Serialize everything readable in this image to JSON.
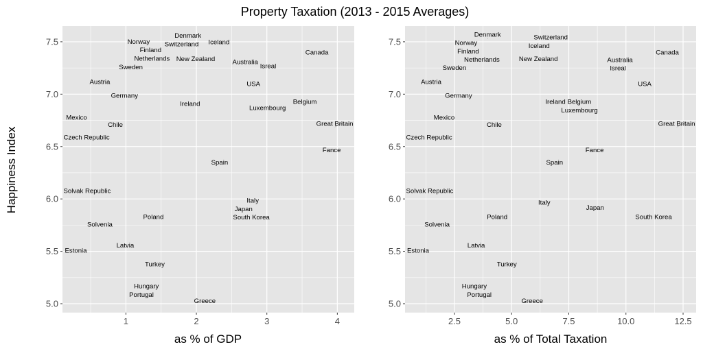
{
  "chart_data": [
    {
      "type": "scatter",
      "title": "Property Taxation (2013 - 2015 Averages)",
      "xlabel": "as % of GDP",
      "ylabel": "Happiness Index",
      "xlim": [
        0.1,
        4.24
      ],
      "ylim": [
        4.915,
        7.65
      ],
      "xticks": [
        1,
        2,
        3,
        4
      ],
      "xtick_labels": [
        "1",
        "2",
        "3",
        "4"
      ],
      "yticks": [
        5.0,
        5.5,
        6.0,
        6.5,
        7.0,
        7.5
      ],
      "ytick_labels": [
        "5.0",
        "5.5",
        "6.0",
        "6.5",
        "7.0",
        "7.5"
      ],
      "grid": true,
      "marker": "text-label",
      "points": [
        {
          "label": "Norway",
          "x": 1.18,
          "y": 7.49
        },
        {
          "label": "Denmark",
          "x": 1.88,
          "y": 7.53
        },
        {
          "label": "Switzerland",
          "x": 1.79,
          "y": 7.51
        },
        {
          "label": "Iceland",
          "x": 2.32,
          "y": 7.5
        },
        {
          "label": "Finland",
          "x": 1.35,
          "y": 7.41
        },
        {
          "label": "Netherlands",
          "x": 1.37,
          "y": 7.34
        },
        {
          "label": "New Zealand",
          "x": 1.99,
          "y": 7.34
        },
        {
          "label": "Sweden",
          "x": 1.07,
          "y": 7.29
        },
        {
          "label": "Australia",
          "x": 2.7,
          "y": 7.31
        },
        {
          "label": "Isreal",
          "x": 3.01,
          "y": 7.27
        },
        {
          "label": "Canada",
          "x": 3.71,
          "y": 7.4
        },
        {
          "label": "Austria",
          "x": 0.63,
          "y": 7.12
        },
        {
          "label": "USA",
          "x": 2.81,
          "y": 7.1
        },
        {
          "label": "Germany",
          "x": 0.98,
          "y": 6.99
        },
        {
          "label": "Ireland",
          "x": 1.91,
          "y": 6.91
        },
        {
          "label": "Luxembourg",
          "x": 3.01,
          "y": 6.87
        },
        {
          "label": "Belgium",
          "x": 3.54,
          "y": 6.93
        },
        {
          "label": "Mexico",
          "x": 0.3,
          "y": 6.78
        },
        {
          "label": "Chile",
          "x": 0.85,
          "y": 6.71
        },
        {
          "label": "Great Britain",
          "x": 4.06,
          "y": 6.72
        },
        {
          "label": "Czech Republic",
          "x": 0.43,
          "y": 6.59
        },
        {
          "label": "Fance",
          "x": 3.92,
          "y": 6.47
        },
        {
          "label": "Spain",
          "x": 2.33,
          "y": 6.35
        },
        {
          "label": "Solvak Republic",
          "x": 0.43,
          "y": 6.08
        },
        {
          "label": "Italy",
          "x": 2.8,
          "y": 5.97
        },
        {
          "label": "Japan",
          "x": 2.67,
          "y": 5.92
        },
        {
          "label": "South Korea",
          "x": 2.78,
          "y": 5.83
        },
        {
          "label": "Poland",
          "x": 1.39,
          "y": 5.83
        },
        {
          "label": "Solvenia",
          "x": 0.63,
          "y": 5.76
        },
        {
          "label": "Latvia",
          "x": 0.99,
          "y": 5.56
        },
        {
          "label": "Estonia",
          "x": 0.29,
          "y": 5.51
        },
        {
          "label": "Turkey",
          "x": 1.41,
          "y": 5.38
        },
        {
          "label": "Hungary",
          "x": 1.29,
          "y": 5.14
        },
        {
          "label": "Portugal",
          "x": 1.22,
          "y": 5.12
        },
        {
          "label": "Greece",
          "x": 2.12,
          "y": 5.03
        }
      ]
    },
    {
      "type": "scatter",
      "xlabel": "as % of Total Taxation",
      "xlim": [
        0.34,
        13.07
      ],
      "ylim": [
        4.915,
        7.65
      ],
      "xticks": [
        2.5,
        5.0,
        7.5,
        10.0,
        12.5
      ],
      "xtick_labels": [
        "2.5",
        "5.0",
        "7.5",
        "10.0",
        "12.5"
      ],
      "yticks": [
        5.0,
        5.5,
        6.0,
        6.5,
        7.0,
        7.5
      ],
      "ytick_labels": [
        "5.0",
        "5.5",
        "6.0",
        "6.5",
        "7.0",
        "7.5"
      ],
      "grid": true,
      "marker": "text-label",
      "points": [
        {
          "label": "Norway",
          "x": 3.01,
          "y": 7.49
        },
        {
          "label": "Denmark",
          "x": 3.95,
          "y": 7.53
        },
        {
          "label": "Switzerland",
          "x": 6.71,
          "y": 7.51
        },
        {
          "label": "Iceland",
          "x": 6.2,
          "y": 7.5
        },
        {
          "label": "Finland",
          "x": 3.1,
          "y": 7.41
        },
        {
          "label": "Netherlands",
          "x": 3.7,
          "y": 7.34
        },
        {
          "label": "New Zealand",
          "x": 6.17,
          "y": 7.34
        },
        {
          "label": "Sweden",
          "x": 2.5,
          "y": 7.29
        },
        {
          "label": "Australia",
          "x": 9.74,
          "y": 7.31
        },
        {
          "label": "Isreal",
          "x": 9.65,
          "y": 7.27
        },
        {
          "label": "Canada",
          "x": 11.81,
          "y": 7.4
        },
        {
          "label": "Austria",
          "x": 1.48,
          "y": 7.12
        },
        {
          "label": "USA",
          "x": 10.82,
          "y": 7.1
        },
        {
          "label": "Germany",
          "x": 2.68,
          "y": 6.99
        },
        {
          "label": "Ireland",
          "x": 7.03,
          "y": 6.91
        },
        {
          "label": "Belgium",
          "x": 7.85,
          "y": 6.93
        },
        {
          "label": "Luxembourg",
          "x": 7.97,
          "y": 6.87
        },
        {
          "label": "Mexico",
          "x": 2.05,
          "y": 6.78
        },
        {
          "label": "Chile",
          "x": 4.24,
          "y": 6.71
        },
        {
          "label": "Great Britain",
          "x": 12.55,
          "y": 6.72
        },
        {
          "label": "Czech Republic",
          "x": 1.29,
          "y": 6.59
        },
        {
          "label": "Fance",
          "x": 8.63,
          "y": 6.47
        },
        {
          "label": "Spain",
          "x": 6.88,
          "y": 6.35
        },
        {
          "label": "Solvak Republic",
          "x": 1.41,
          "y": 6.08
        },
        {
          "label": "Italy",
          "x": 6.43,
          "y": 5.97
        },
        {
          "label": "Japan",
          "x": 8.65,
          "y": 5.92
        },
        {
          "label": "South Korea",
          "x": 11.21,
          "y": 5.83
        },
        {
          "label": "Poland",
          "x": 4.37,
          "y": 5.83
        },
        {
          "label": "Solvenia",
          "x": 1.74,
          "y": 5.76
        },
        {
          "label": "Latvia",
          "x": 3.45,
          "y": 5.56
        },
        {
          "label": "Estonia",
          "x": 0.91,
          "y": 5.51
        },
        {
          "label": "Turkey",
          "x": 4.79,
          "y": 5.38
        },
        {
          "label": "Hungary",
          "x": 3.37,
          "y": 5.14
        },
        {
          "label": "Portugal",
          "x": 3.59,
          "y": 5.12
        },
        {
          "label": "Greece",
          "x": 5.9,
          "y": 5.03
        }
      ]
    }
  ],
  "colors": {
    "panel_background": "#e5e5e5",
    "grid": "#ffffff",
    "text": "#000000",
    "tick_text": "#4d4d4d"
  }
}
